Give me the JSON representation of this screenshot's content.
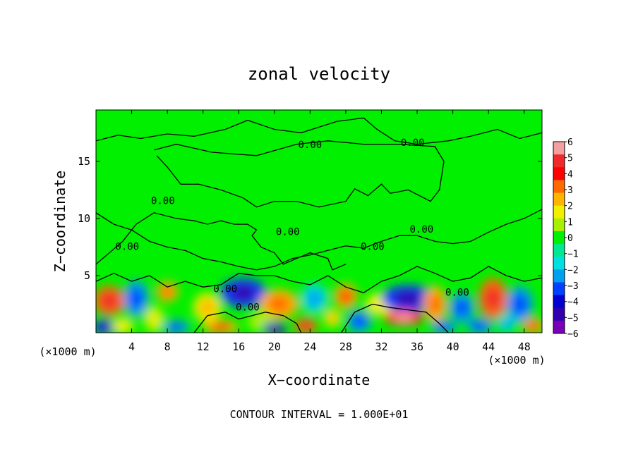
{
  "chart_data": {
    "type": "heatmap",
    "title": "zonal velocity",
    "xlabel": "X−coordinate",
    "ylabel": "Z−coordinate",
    "x_unit_left": "(×1000 m)",
    "x_unit_right": "(×1000 m)",
    "xlim": [
      0,
      50
    ],
    "ylim": [
      0,
      19.5
    ],
    "x_ticks": [
      "4",
      "8",
      "12",
      "16",
      "20",
      "24",
      "28",
      "32",
      "36",
      "40",
      "44",
      "48"
    ],
    "y_ticks": [
      "5",
      "10",
      "15"
    ],
    "colorbar": {
      "range": [
        -6,
        6
      ],
      "labels": [
        "6",
        "5",
        "4",
        "3",
        "2",
        "1",
        "0",
        "−1",
        "−2",
        "−3",
        "−4",
        "−5",
        "−6"
      ],
      "colors": [
        "#f4a0a0",
        "#ee2a2a",
        "#ff0000",
        "#ff6a00",
        "#ffb400",
        "#f0f000",
        "#a8f000",
        "#00f000",
        "#00e890",
        "#00e0e0",
        "#00a0f0",
        "#0040ff",
        "#0000d0",
        "#3000b0",
        "#7800b8"
      ]
    },
    "contour_label": "0.00",
    "footer": "CONTOUR INTERVAL = 1.000E+01",
    "anomalies": [
      {
        "x": 1.5,
        "z": 2.8,
        "rx": 1.8,
        "rz": 1.3,
        "v": 4.5
      },
      {
        "x": 4.5,
        "z": 3.0,
        "rx": 1.4,
        "rz": 1.6,
        "v": -3
      },
      {
        "x": 1.0,
        "z": 0.5,
        "rx": 1.5,
        "rz": 0.6,
        "v": -4.5
      },
      {
        "x": 3.0,
        "z": 0.6,
        "rx": 1.2,
        "rz": 0.7,
        "v": 2
      },
      {
        "x": 6.5,
        "z": 1.2,
        "rx": 1.2,
        "rz": 1.2,
        "v": 1.5
      },
      {
        "x": 8.0,
        "z": 3.6,
        "rx": 1.2,
        "rz": 0.9,
        "v": 3
      },
      {
        "x": 9.0,
        "z": 0.5,
        "rx": 1.5,
        "rz": 0.6,
        "v": -3
      },
      {
        "x": 12.5,
        "z": 2.2,
        "rx": 1.6,
        "rz": 1.3,
        "v": 2.5
      },
      {
        "x": 14.0,
        "z": 0.5,
        "rx": 2.0,
        "rz": 0.6,
        "v": 4
      },
      {
        "x": 16.5,
        "z": 3.5,
        "rx": 2.6,
        "rz": 1.3,
        "v": -4.5
      },
      {
        "x": 20.5,
        "z": 2.5,
        "rx": 2.2,
        "rz": 1.3,
        "v": 3.5
      },
      {
        "x": 18.5,
        "z": 1.0,
        "rx": 1.5,
        "rz": 0.9,
        "v": 1
      },
      {
        "x": 20.0,
        "z": 0.4,
        "rx": 1.3,
        "rz": 0.5,
        "v": -5.5
      },
      {
        "x": 23.5,
        "z": 0.6,
        "rx": 1.3,
        "rz": 0.7,
        "v": 5
      },
      {
        "x": 24.5,
        "z": 3.0,
        "rx": 1.5,
        "rz": 1.3,
        "v": -2.5
      },
      {
        "x": 26.5,
        "z": 1.3,
        "rx": 1.0,
        "rz": 0.8,
        "v": 2.5
      },
      {
        "x": 28.0,
        "z": 3.2,
        "rx": 1.3,
        "rz": 1.1,
        "v": 4
      },
      {
        "x": 29.5,
        "z": 1.0,
        "rx": 1.4,
        "rz": 1.0,
        "v": -3.5
      },
      {
        "x": 32.0,
        "z": 2.5,
        "rx": 1.8,
        "rz": 1.0,
        "v": 2
      },
      {
        "x": 35.0,
        "z": 3.0,
        "rx": 3.0,
        "rz": 1.2,
        "v": -5
      },
      {
        "x": 34.5,
        "z": 1.3,
        "rx": 2.2,
        "rz": 0.7,
        "v": 5.5
      },
      {
        "x": 38.0,
        "z": 2.5,
        "rx": 1.3,
        "rz": 1.6,
        "v": 3
      },
      {
        "x": 39.0,
        "z": 0.5,
        "rx": 1.5,
        "rz": 0.6,
        "v": -3
      },
      {
        "x": 41.0,
        "z": 2.2,
        "rx": 1.4,
        "rz": 1.3,
        "v": -3
      },
      {
        "x": 44.5,
        "z": 3.0,
        "rx": 1.6,
        "rz": 1.8,
        "v": 4.5
      },
      {
        "x": 43.0,
        "z": 0.6,
        "rx": 1.5,
        "rz": 0.7,
        "v": -3.5
      },
      {
        "x": 47.5,
        "z": 2.5,
        "rx": 1.5,
        "rz": 1.6,
        "v": -3.5
      },
      {
        "x": 49.0,
        "z": 0.6,
        "rx": 1.2,
        "rz": 0.7,
        "v": 4
      },
      {
        "x": 46.0,
        "z": 0.8,
        "rx": 1.0,
        "rz": 0.8,
        "v": -2
      }
    ],
    "contours": [
      [
        [
          0,
          16.8
        ],
        [
          2.5,
          17.3
        ],
        [
          5.0,
          17.0
        ],
        [
          8.0,
          17.4
        ],
        [
          11.0,
          17.2
        ],
        [
          14.5,
          17.8
        ],
        [
          17.0,
          18.6
        ],
        [
          20.0,
          17.8
        ],
        [
          23.0,
          17.5
        ],
        [
          27.0,
          18.5
        ],
        [
          30.0,
          18.8
        ],
        [
          31.5,
          17.8
        ],
        [
          33.5,
          16.8
        ],
        [
          36.0,
          16.5
        ],
        [
          39.5,
          16.8
        ],
        [
          42.0,
          17.2
        ],
        [
          45.0,
          17.8
        ],
        [
          47.5,
          17.0
        ],
        [
          50,
          17.5
        ]
      ],
      [
        [
          6.5,
          16.0
        ],
        [
          9.0,
          16.5
        ],
        [
          13.0,
          15.8
        ],
        [
          18.0,
          15.5
        ],
        [
          22.5,
          16.5
        ],
        [
          26.0,
          16.8
        ],
        [
          30.0,
          16.5
        ],
        [
          34.0,
          16.5
        ],
        [
          38.0,
          16.3
        ],
        [
          39.0,
          15.0
        ],
        [
          38.5,
          12.5
        ],
        [
          37.5,
          11.5
        ],
        [
          35.0,
          12.5
        ],
        [
          33.0,
          12.2
        ],
        [
          32.0,
          13.0
        ],
        [
          30.5,
          12.0
        ],
        [
          29.0,
          12.6
        ],
        [
          28.0,
          11.5
        ],
        [
          25.0,
          11.0
        ],
        [
          22.5,
          11.5
        ],
        [
          20.0,
          11.5
        ],
        [
          18.0,
          11.0
        ],
        [
          16.5,
          11.8
        ],
        [
          14.0,
          12.5
        ],
        [
          11.5,
          13.0
        ],
        [
          9.5,
          13.0
        ],
        [
          8.0,
          14.5
        ],
        [
          6.8,
          15.5
        ]
      ],
      [
        [
          0,
          10.5
        ],
        [
          2.0,
          9.5
        ],
        [
          4.0,
          9.0
        ],
        [
          6.0,
          8.0
        ],
        [
          8.0,
          7.5
        ],
        [
          10.0,
          7.2
        ],
        [
          12.0,
          6.5
        ],
        [
          14.0,
          6.2
        ],
        [
          16.0,
          5.8
        ],
        [
          18.0,
          5.5
        ],
        [
          20.0,
          5.8
        ],
        [
          22.0,
          6.5
        ],
        [
          24.0,
          6.8
        ],
        [
          26.0,
          7.2
        ],
        [
          28.0,
          7.6
        ],
        [
          30.0,
          7.4
        ],
        [
          32.0,
          8.0
        ],
        [
          34.0,
          8.5
        ],
        [
          36.0,
          8.5
        ],
        [
          38.0,
          8.0
        ],
        [
          40.0,
          7.8
        ],
        [
          42.0,
          8.0
        ],
        [
          44.0,
          8.8
        ],
        [
          46.0,
          9.5
        ],
        [
          48.0,
          10.0
        ],
        [
          50,
          10.8
        ]
      ],
      [
        [
          0,
          6.0
        ],
        [
          1.5,
          7.0
        ],
        [
          3.0,
          8.0
        ],
        [
          4.5,
          9.5
        ],
        [
          6.5,
          10.5
        ],
        [
          9.0,
          10.0
        ],
        [
          11.0,
          9.8
        ],
        [
          12.5,
          9.5
        ],
        [
          14.0,
          9.8
        ],
        [
          15.5,
          9.5
        ],
        [
          17.0,
          9.5
        ],
        [
          18.0,
          9.0
        ],
        [
          17.5,
          8.5
        ],
        [
          18.5,
          7.5
        ],
        [
          20.0,
          7.0
        ],
        [
          21.0,
          6.0
        ],
        [
          22.5,
          6.5
        ],
        [
          24.0,
          7.0
        ],
        [
          26.0,
          6.5
        ],
        [
          26.5,
          5.5
        ],
        [
          28.0,
          6.0
        ]
      ],
      [
        [
          0,
          4.5
        ],
        [
          2.0,
          5.2
        ],
        [
          4.0,
          4.5
        ],
        [
          6.0,
          5.0
        ],
        [
          8.0,
          4.0
        ],
        [
          10.0,
          4.5
        ],
        [
          12.0,
          4.0
        ],
        [
          14.0,
          4.2
        ],
        [
          16.0,
          5.2
        ],
        [
          18.0,
          5.0
        ],
        [
          20.0,
          5.0
        ],
        [
          22.0,
          4.5
        ],
        [
          24.0,
          4.2
        ],
        [
          26.0,
          5.0
        ],
        [
          28.0,
          4.0
        ],
        [
          30.0,
          3.5
        ],
        [
          32.0,
          4.5
        ],
        [
          34.0,
          5.0
        ],
        [
          36.0,
          5.8
        ],
        [
          38.0,
          5.2
        ],
        [
          40.0,
          4.5
        ],
        [
          42.0,
          4.8
        ],
        [
          44.0,
          5.8
        ],
        [
          46.0,
          5.0
        ],
        [
          48.0,
          4.5
        ],
        [
          50,
          4.8
        ]
      ],
      [
        [
          11.0,
          0
        ],
        [
          12.5,
          1.5
        ],
        [
          14.5,
          1.8
        ],
        [
          16.0,
          1.2
        ],
        [
          17.5,
          1.5
        ],
        [
          19.0,
          1.8
        ],
        [
          21.0,
          1.5
        ],
        [
          22.5,
          0.8
        ],
        [
          23.0,
          0
        ]
      ],
      [
        [
          27.5,
          0
        ],
        [
          29.0,
          1.8
        ],
        [
          31.0,
          2.5
        ],
        [
          33.0,
          2.2
        ],
        [
          35.0,
          2.0
        ],
        [
          37.0,
          1.8
        ],
        [
          38.5,
          0.8
        ],
        [
          39.5,
          0
        ]
      ]
    ],
    "contour_labels": [
      {
        "x": 24.0,
        "z": 16.4
      },
      {
        "x": 35.5,
        "z": 16.6
      },
      {
        "x": 7.5,
        "z": 11.5
      },
      {
        "x": 21.5,
        "z": 8.8
      },
      {
        "x": 36.5,
        "z": 9.0
      },
      {
        "x": 3.5,
        "z": 7.5
      },
      {
        "x": 31.0,
        "z": 7.5
      },
      {
        "x": 14.5,
        "z": 3.8
      },
      {
        "x": 17.0,
        "z": 2.2
      },
      {
        "x": 40.5,
        "z": 3.5
      }
    ]
  }
}
